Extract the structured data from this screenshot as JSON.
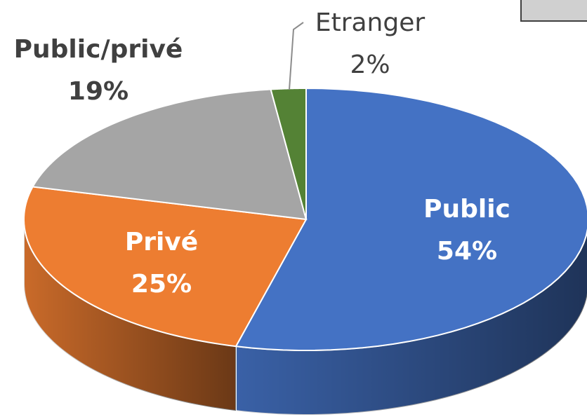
{
  "chart_data": {
    "type": "pie",
    "categories": [
      "Public",
      "Privé",
      "Public/privé",
      "Etranger"
    ],
    "values": [
      54,
      25,
      19,
      2
    ],
    "value_labels": [
      "54%",
      "25%",
      "19%",
      "2%"
    ],
    "colors": [
      "#4472c4",
      "#ed7d31",
      "#a5a5a5",
      "#548235"
    ]
  }
}
